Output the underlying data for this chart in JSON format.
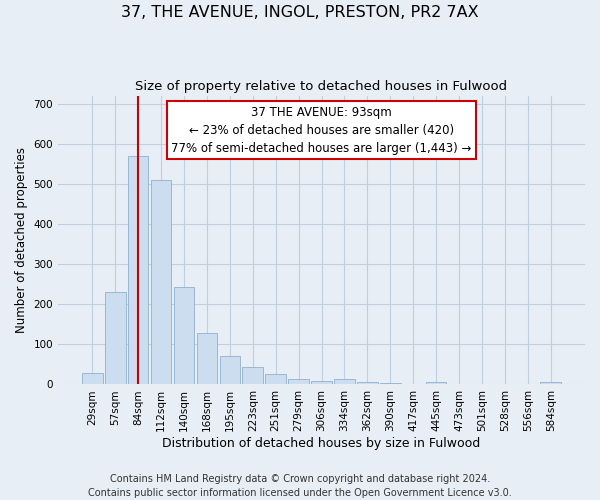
{
  "title": "37, THE AVENUE, INGOL, PRESTON, PR2 7AX",
  "subtitle": "Size of property relative to detached houses in Fulwood",
  "xlabel": "Distribution of detached houses by size in Fulwood",
  "ylabel": "Number of detached properties",
  "categories": [
    "29sqm",
    "57sqm",
    "84sqm",
    "112sqm",
    "140sqm",
    "168sqm",
    "195sqm",
    "223sqm",
    "251sqm",
    "279sqm",
    "306sqm",
    "334sqm",
    "362sqm",
    "390sqm",
    "417sqm",
    "445sqm",
    "473sqm",
    "501sqm",
    "528sqm",
    "556sqm",
    "584sqm"
  ],
  "values": [
    28,
    230,
    570,
    510,
    242,
    127,
    70,
    43,
    27,
    14,
    9,
    13,
    5,
    3,
    2,
    6,
    1,
    0,
    0,
    0,
    5
  ],
  "bar_color": "#ccddf0",
  "bar_edge_color": "#90b0d0",
  "vline_x": 2.0,
  "vline_color": "#cc0000",
  "annotation_text": "37 THE AVENUE: 93sqm\n← 23% of detached houses are smaller (420)\n77% of semi-detached houses are larger (1,443) →",
  "annotation_box_color": "#ffffff",
  "annotation_box_edge": "#cc0000",
  "ylim": [
    0,
    720
  ],
  "yticks": [
    0,
    100,
    200,
    300,
    400,
    500,
    600,
    700
  ],
  "footer_line1": "Contains HM Land Registry data © Crown copyright and database right 2024.",
  "footer_line2": "Contains public sector information licensed under the Open Government Licence v3.0.",
  "background_color": "#e8eef5",
  "plot_background": "#e8eef5",
  "grid_color": "#c0cfe0",
  "title_fontsize": 11.5,
  "subtitle_fontsize": 9.5,
  "xlabel_fontsize": 9,
  "ylabel_fontsize": 8.5,
  "tick_fontsize": 7.5,
  "annotation_fontsize": 8.5,
  "footer_fontsize": 7
}
